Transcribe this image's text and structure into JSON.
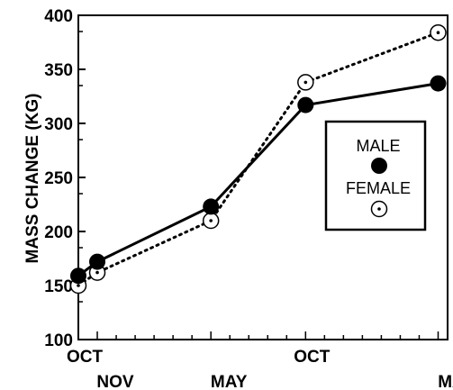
{
  "chart_data": {
    "type": "line",
    "title": "",
    "xlabel": "",
    "ylabel": "MASS CHANGE (KG)",
    "ylim": [
      100,
      400
    ],
    "yticks": [
      100,
      150,
      200,
      250,
      300,
      350,
      400
    ],
    "grid": false,
    "legend_position": "right",
    "x_tick_labels": [
      {
        "label": "OCT",
        "row": 1,
        "x": 0
      },
      {
        "label": "NOV",
        "row": 2,
        "x": 1
      },
      {
        "label": "MAY",
        "row": 2,
        "x": 7
      },
      {
        "label": "OCT",
        "row": 1,
        "x": 12
      },
      {
        "label": "MAY",
        "row": 2,
        "x": 19
      }
    ],
    "xlim": [
      0,
      19.5
    ],
    "series": [
      {
        "name": "MALE",
        "marker": "filled-circle",
        "line": "solid",
        "color": "#000000",
        "x": [
          0,
          1,
          7,
          12,
          19
        ],
        "y": [
          159,
          172,
          223,
          317,
          337
        ]
      },
      {
        "name": "FEMALE",
        "marker": "dotted-circle",
        "line": "dotted",
        "color": "#000000",
        "x": [
          0,
          1,
          7,
          12,
          19
        ],
        "y": [
          150,
          162,
          210,
          338,
          384
        ]
      }
    ]
  }
}
